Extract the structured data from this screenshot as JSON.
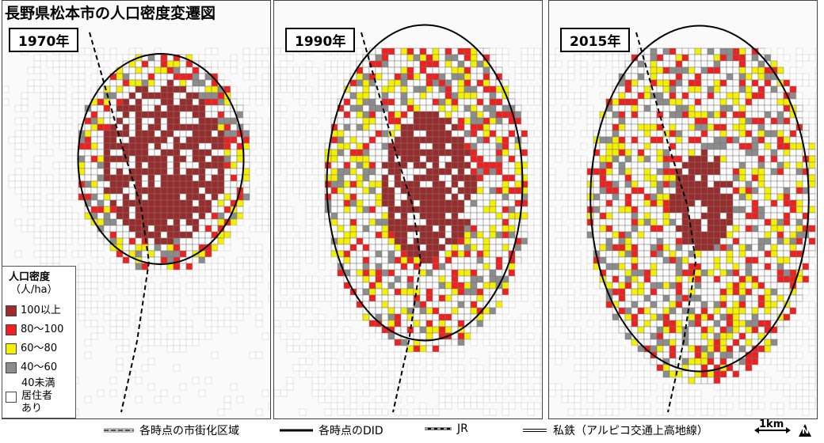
{
  "title": "長野県松本市の人口密度変遷図",
  "panels": [
    {
      "year": "1970年"
    },
    {
      "year": "1990年"
    },
    {
      "year": "2015年"
    }
  ],
  "legend": {
    "title": "人口密度",
    "unit": "（人/ha）",
    "items": [
      {
        "label": "100以上",
        "color": "#9b2c2c"
      },
      {
        "label": "80～100",
        "color": "#ee2020"
      },
      {
        "label": "60～80",
        "color": "#f5f000"
      },
      {
        "label": "40～60",
        "color": "#8c8c8c"
      }
    ],
    "last": {
      "lines": [
        "40未満",
        "居住者",
        "あり"
      ],
      "color": "#ffffff"
    }
  },
  "footer": {
    "urbanization": "各時点の市街化区域",
    "did": "各時点のDID",
    "jr": "JR",
    "private_rail": "私鉄（アルピコ交通上高地線）",
    "scale": "1km",
    "north": "N"
  }
}
